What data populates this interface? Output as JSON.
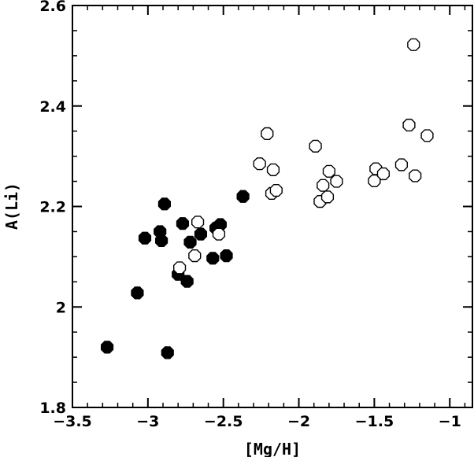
{
  "chart_data": {
    "type": "scatter",
    "xlabel": "[Mg/H]",
    "ylabel": "A(Li)",
    "xlim": [
      -3.5,
      -0.85
    ],
    "ylim": [
      1.8,
      2.6
    ],
    "x_ticks": [
      -3.5,
      -3,
      -2.5,
      -2,
      -1.5,
      -1
    ],
    "x_tick_labels": [
      "−3.5",
      "−3",
      "−2.5",
      "−2",
      "−1.5",
      "−1"
    ],
    "y_ticks": [
      1.8,
      2,
      2.2,
      2.4,
      2.6
    ],
    "y_tick_labels": [
      "1.8",
      "2",
      "2.2",
      "2.4",
      "2.6"
    ],
    "grid": false,
    "series": [
      {
        "marker": "filled-octagon",
        "color": "#000000",
        "points": [
          [
            -3.27,
            1.92
          ],
          [
            -3.07,
            2.028
          ],
          [
            -3.02,
            2.137
          ],
          [
            -2.92,
            2.15
          ],
          [
            -2.91,
            2.132
          ],
          [
            -2.89,
            2.205
          ],
          [
            -2.87,
            1.909
          ],
          [
            -2.8,
            2.065
          ],
          [
            -2.77,
            2.166
          ],
          [
            -2.74,
            2.051
          ],
          [
            -2.72,
            2.129
          ],
          [
            -2.65,
            2.145
          ],
          [
            -2.57,
            2.097
          ],
          [
            -2.55,
            2.157
          ],
          [
            -2.52,
            2.164
          ],
          [
            -2.48,
            2.102
          ],
          [
            -2.37,
            2.22
          ]
        ]
      },
      {
        "marker": "open-octagon",
        "color": "#000000",
        "points": [
          [
            -2.79,
            2.078
          ],
          [
            -2.69,
            2.102
          ],
          [
            -2.67,
            2.169
          ],
          [
            -2.53,
            2.145
          ],
          [
            -2.26,
            2.285
          ],
          [
            -2.21,
            2.345
          ],
          [
            -2.18,
            2.226
          ],
          [
            -2.17,
            2.273
          ],
          [
            -2.15,
            2.232
          ],
          [
            -1.89,
            2.32
          ],
          [
            -1.86,
            2.21
          ],
          [
            -1.84,
            2.242
          ],
          [
            -1.81,
            2.219
          ],
          [
            -1.8,
            2.27
          ],
          [
            -1.75,
            2.25
          ],
          [
            -1.5,
            2.251
          ],
          [
            -1.49,
            2.275
          ],
          [
            -1.44,
            2.265
          ],
          [
            -1.32,
            2.283
          ],
          [
            -1.27,
            2.362
          ],
          [
            -1.24,
            2.522
          ],
          [
            -1.23,
            2.261
          ],
          [
            -1.15,
            2.341
          ]
        ]
      }
    ]
  }
}
